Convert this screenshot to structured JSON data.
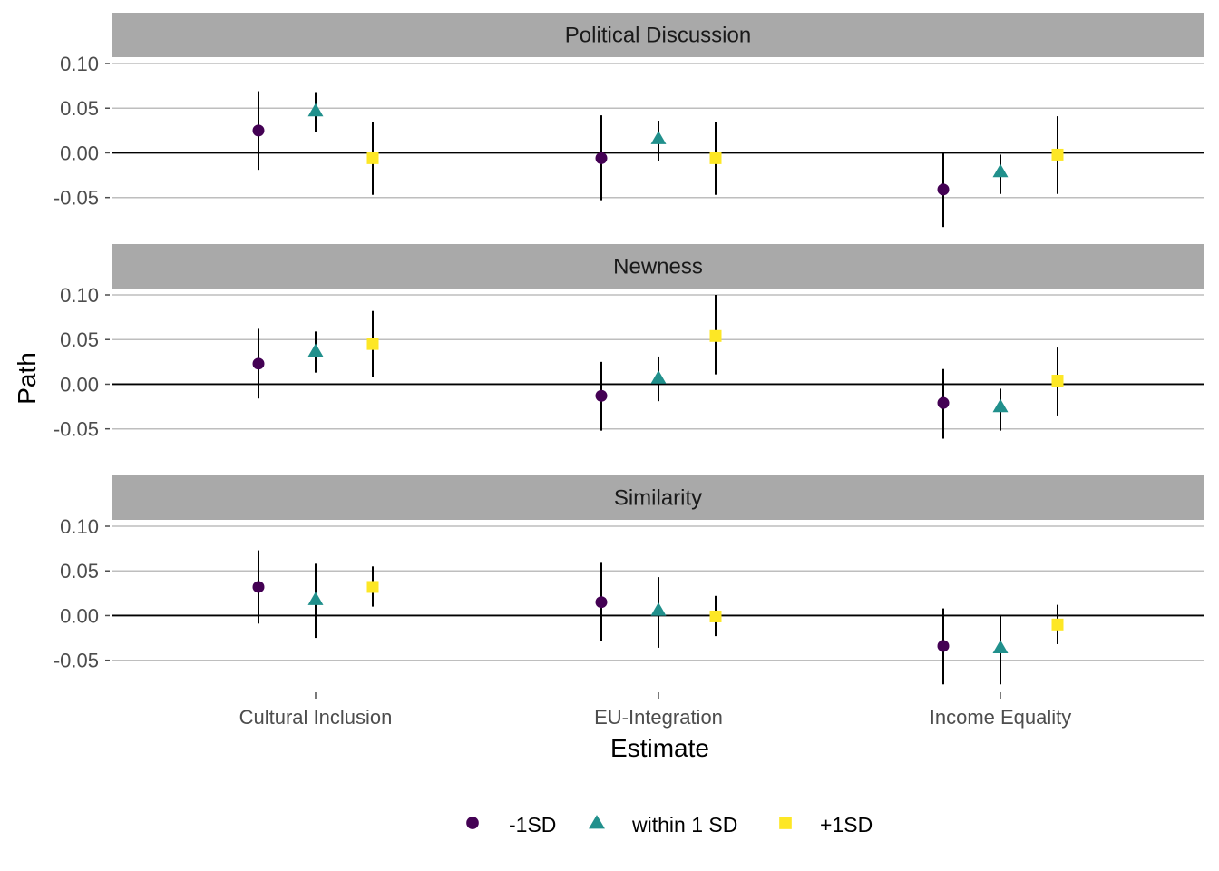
{
  "chart_data": {
    "type": "scatter",
    "subtype": "pointrange-facets",
    "xlabel": "Estimate",
    "ylabel": "Path",
    "categories": [
      "Cultural Inclusion",
      "EU-Integration",
      "Income Equality"
    ],
    "ylim": [
      -0.095,
      0.1
    ],
    "yticks": [
      "0.10",
      "0.05",
      "0.00",
      "-0.05"
    ],
    "ytick_values": [
      0.1,
      0.05,
      0.0,
      -0.05
    ],
    "grid": "horizontal",
    "legend_position": "bottom",
    "colors": {
      "low": "#440154",
      "mid": "#21908C",
      "high": "#FDE725",
      "strip_bg": "#A9A9A9",
      "grid": "#BEBEBE",
      "zero_line": "#000000"
    },
    "groups": [
      {
        "key": "low",
        "label": "-1SD",
        "shape": "circle"
      },
      {
        "key": "mid",
        "label": "within 1 SD",
        "shape": "triangle"
      },
      {
        "key": "high",
        "label": "+1SD",
        "shape": "square"
      }
    ],
    "facets": [
      {
        "name": "Political Discussion",
        "points": [
          {
            "category": "Cultural Inclusion",
            "group": "low",
            "y": 0.025,
            "lo": -0.019,
            "hi": 0.069
          },
          {
            "category": "Cultural Inclusion",
            "group": "mid",
            "y": 0.047,
            "lo": 0.023,
            "hi": 0.068
          },
          {
            "category": "Cultural Inclusion",
            "group": "high",
            "y": -0.006,
            "lo": -0.047,
            "hi": 0.034
          },
          {
            "category": "EU-Integration",
            "group": "low",
            "y": -0.006,
            "lo": -0.053,
            "hi": 0.042
          },
          {
            "category": "EU-Integration",
            "group": "mid",
            "y": 0.016,
            "lo": -0.009,
            "hi": 0.036
          },
          {
            "category": "EU-Integration",
            "group": "high",
            "y": -0.006,
            "lo": -0.047,
            "hi": 0.034
          },
          {
            "category": "Income Equality",
            "group": "low",
            "y": -0.041,
            "lo": -0.083,
            "hi": 0.0
          },
          {
            "category": "Income Equality",
            "group": "mid",
            "y": -0.021,
            "lo": -0.046,
            "hi": -0.002
          },
          {
            "category": "Income Equality",
            "group": "high",
            "y": -0.002,
            "lo": -0.046,
            "hi": 0.041
          }
        ]
      },
      {
        "name": "Newness",
        "points": [
          {
            "category": "Cultural Inclusion",
            "group": "low",
            "y": 0.023,
            "lo": -0.016,
            "hi": 0.062
          },
          {
            "category": "Cultural Inclusion",
            "group": "mid",
            "y": 0.037,
            "lo": 0.013,
            "hi": 0.059
          },
          {
            "category": "Cultural Inclusion",
            "group": "high",
            "y": 0.045,
            "lo": 0.008,
            "hi": 0.082
          },
          {
            "category": "EU-Integration",
            "group": "low",
            "y": -0.013,
            "lo": -0.052,
            "hi": 0.025
          },
          {
            "category": "EU-Integration",
            "group": "mid",
            "y": 0.007,
            "lo": -0.019,
            "hi": 0.031
          },
          {
            "category": "EU-Integration",
            "group": "high",
            "y": 0.054,
            "lo": 0.011,
            "hi": 0.1
          },
          {
            "category": "Income Equality",
            "group": "low",
            "y": -0.021,
            "lo": -0.061,
            "hi": 0.017
          },
          {
            "category": "Income Equality",
            "group": "mid",
            "y": -0.025,
            "lo": -0.052,
            "hi": -0.005
          },
          {
            "category": "Income Equality",
            "group": "high",
            "y": 0.004,
            "lo": -0.035,
            "hi": 0.041
          }
        ]
      },
      {
        "name": "Similarity",
        "points": [
          {
            "category": "Cultural Inclusion",
            "group": "low",
            "y": 0.032,
            "lo": -0.009,
            "hi": 0.073
          },
          {
            "category": "Cultural Inclusion",
            "group": "mid",
            "y": 0.018,
            "lo": -0.025,
            "hi": 0.058
          },
          {
            "category": "Cultural Inclusion",
            "group": "high",
            "y": 0.032,
            "lo": 0.01,
            "hi": 0.055
          },
          {
            "category": "EU-Integration",
            "group": "low",
            "y": 0.015,
            "lo": -0.029,
            "hi": 0.06
          },
          {
            "category": "EU-Integration",
            "group": "mid",
            "y": 0.006,
            "lo": -0.036,
            "hi": 0.043
          },
          {
            "category": "EU-Integration",
            "group": "high",
            "y": -0.001,
            "lo": -0.023,
            "hi": 0.022
          },
          {
            "category": "Income Equality",
            "group": "low",
            "y": -0.034,
            "lo": -0.077,
            "hi": 0.008
          },
          {
            "category": "Income Equality",
            "group": "mid",
            "y": -0.036,
            "lo": -0.077,
            "hi": 0.0
          },
          {
            "category": "Income Equality",
            "group": "high",
            "y": -0.01,
            "lo": -0.032,
            "hi": 0.012
          }
        ]
      }
    ]
  }
}
